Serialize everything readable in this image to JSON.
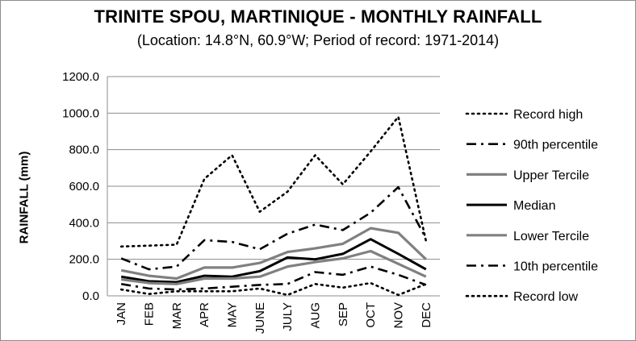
{
  "chart_data": {
    "type": "line",
    "title": "TRINITE SPOU, MARTINIQUE - MONTHLY RAINFALL",
    "subtitle": "(Location: 14.8°N, 60.9°W; Period of record: 1971-2014)",
    "xlabel": "",
    "ylabel": "RAINFALL (mm)",
    "ylim": [
      0,
      1200
    ],
    "yticks": [
      "0.0",
      "200.0",
      "400.0",
      "600.0",
      "800.0",
      "1000.0",
      "1200.0"
    ],
    "grid": "horizontal",
    "legend_position": "right",
    "categories": [
      "JAN",
      "FEB",
      "MAR",
      "APR",
      "MAY",
      "JUNE",
      "JULY",
      "AUG",
      "SEP",
      "OCT",
      "NOV",
      "DEC"
    ],
    "series": [
      {
        "name": "Record high",
        "color": "#000000",
        "style": "dotted",
        "values": [
          270,
          275,
          280,
          640,
          770,
          460,
          570,
          770,
          610,
          790,
          980,
          300
        ]
      },
      {
        "name": "90th percentile",
        "color": "#000000",
        "style": "dashdot",
        "values": [
          205,
          145,
          160,
          305,
          295,
          255,
          340,
          390,
          360,
          455,
          595,
          315
        ]
      },
      {
        "name": "Upper Tercile",
        "color": "#808080",
        "style": "solid",
        "values": [
          140,
          110,
          95,
          155,
          155,
          180,
          240,
          260,
          285,
          370,
          345,
          200
        ]
      },
      {
        "name": "Median",
        "color": "#000000",
        "style": "solid",
        "values": [
          105,
          80,
          75,
          110,
          105,
          135,
          210,
          200,
          230,
          310,
          230,
          145
        ]
      },
      {
        "name": "Lower Tercile",
        "color": "#808080",
        "style": "solid",
        "values": [
          90,
          70,
          65,
          95,
          95,
          105,
          160,
          185,
          205,
          245,
          175,
          105
        ]
      },
      {
        "name": "10th percentile",
        "color": "#000000",
        "style": "dashdot",
        "values": [
          65,
          40,
          35,
          40,
          50,
          60,
          65,
          130,
          115,
          160,
          115,
          60
        ]
      },
      {
        "name": "Record low",
        "color": "#000000",
        "style": "dotted",
        "values": [
          35,
          10,
          25,
          25,
          25,
          40,
          5,
          65,
          45,
          70,
          5,
          65
        ]
      }
    ]
  }
}
